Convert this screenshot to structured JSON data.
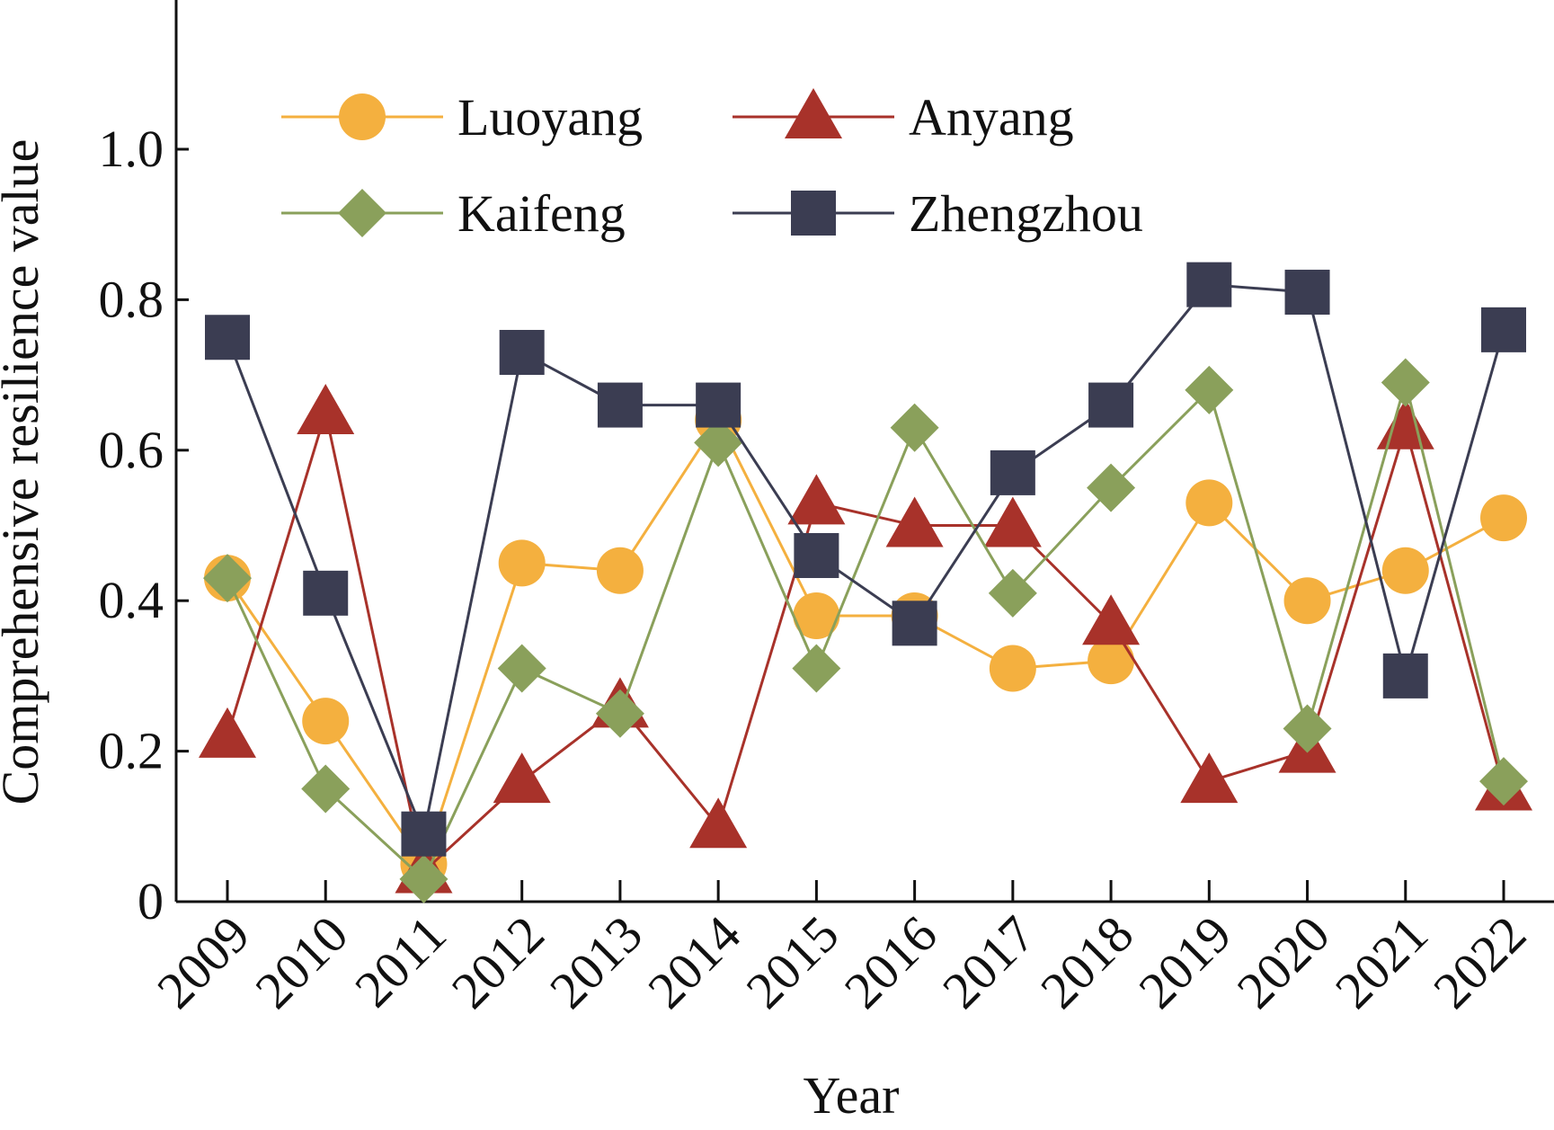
{
  "chart_data": {
    "type": "line",
    "title": "",
    "xlabel": "Year",
    "ylabel": "Comprehensive resilience value",
    "categories": [
      "2009",
      "2010",
      "2011",
      "2012",
      "2013",
      "2014",
      "2015",
      "2016",
      "2017",
      "2018",
      "2019",
      "2020",
      "2021",
      "2022"
    ],
    "ylim": [
      0,
      1.2
    ],
    "yticks": [
      0,
      0.2,
      0.4,
      0.6,
      0.8,
      1.0
    ],
    "ytick_labels": [
      "0",
      "0.2",
      "0.4",
      "0.6",
      "0.8",
      "1.0"
    ],
    "grid": false,
    "legend_position": "top",
    "series": [
      {
        "name": "Luoyang",
        "color": "#f4b03f",
        "marker": "circle",
        "values": [
          0.43,
          0.24,
          0.05,
          0.45,
          0.44,
          0.64,
          0.38,
          0.38,
          0.31,
          0.32,
          0.53,
          0.4,
          0.44,
          0.51
        ]
      },
      {
        "name": "Anyang",
        "color": "#a8322a",
        "marker": "triangle",
        "values": [
          0.22,
          0.65,
          0.04,
          0.16,
          0.26,
          0.1,
          0.53,
          0.5,
          0.5,
          0.37,
          0.16,
          0.2,
          0.63,
          0.15
        ]
      },
      {
        "name": "Kaifeng",
        "color": "#8aa05b",
        "marker": "diamond",
        "values": [
          0.43,
          0.15,
          0.03,
          0.31,
          0.25,
          0.61,
          0.31,
          0.63,
          0.41,
          0.55,
          0.68,
          0.23,
          0.69,
          0.16
        ]
      },
      {
        "name": "Zhengzhou",
        "color": "#3b3d52",
        "marker": "square",
        "values": [
          0.75,
          0.41,
          0.09,
          0.73,
          0.66,
          0.66,
          0.46,
          0.37,
          0.57,
          0.66,
          0.82,
          0.81,
          0.3,
          0.76
        ]
      }
    ]
  }
}
